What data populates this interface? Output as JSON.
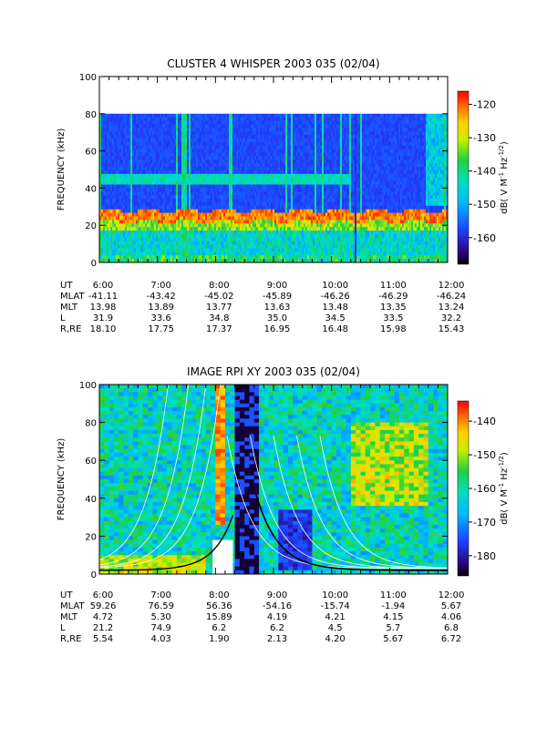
{
  "chart_data": [
    {
      "type": "heatmap",
      "title": "CLUSTER 4 WHISPER 2003 035 (02/04)",
      "ylabel": "FREQUENCY (kHz)",
      "ylim": [
        0,
        100
      ],
      "yticks": [
        0,
        20,
        40,
        60,
        80,
        100
      ],
      "xlim": [
        "6:00",
        "12:00"
      ],
      "xticks": [
        "6:00",
        "7:00",
        "8:00",
        "9:00",
        "10:00",
        "11:00",
        "12:00"
      ],
      "data_max_frequency_khz": 80,
      "colorbar": {
        "label": "dB( V M⁻¹ Hz⁻¹ᐟ²)",
        "label_text": "dB( V M",
        "range": [
          -168,
          -116
        ],
        "ticks": [
          -120,
          -130,
          -140,
          -150,
          -160
        ]
      },
      "features": {
        "intense_band_khz": [
          22,
          28
        ],
        "upper_band_khz": [
          44,
          48
        ],
        "data_gap": [
          "10:22",
          "10:25"
        ]
      },
      "table": {
        "rows": [
          {
            "label": "UT",
            "values": [
              "6:00",
              "7:00",
              "8:00",
              "9:00",
              "10:00",
              "11:00",
              "12:00"
            ]
          },
          {
            "label": "MLAT",
            "values": [
              "-41.11",
              "-43.42",
              "-45.02",
              "-45.89",
              "-46.26",
              "-46.29",
              "-46.24"
            ]
          },
          {
            "label": "MLT",
            "values": [
              "13.98",
              "13.89",
              "13.77",
              "13.63",
              "13.48",
              "13.35",
              "13.24"
            ]
          },
          {
            "label": "L",
            "values": [
              "31.9",
              "33.6",
              "34.8",
              "35.0",
              "34.5",
              "33.5",
              "32.2"
            ]
          },
          {
            "label": "R,RE",
            "values": [
              "18.10",
              "17.75",
              "17.37",
              "16.95",
              "16.48",
              "15.98",
              "15.43"
            ]
          }
        ]
      }
    },
    {
      "type": "heatmap",
      "title": "IMAGE RPI XY 2003 035 (02/04)",
      "ylabel": "FREQUENCY (kHz)",
      "ylim": [
        0,
        100
      ],
      "yticks": [
        0,
        20,
        40,
        60,
        80,
        100
      ],
      "xlim": [
        "6:00",
        "12:00"
      ],
      "xticks": [
        "6:00",
        "7:00",
        "8:00",
        "9:00",
        "10:00",
        "11:00",
        "12:00"
      ],
      "colorbar": {
        "label_text": "dB( V M",
        "range": [
          -186,
          -134
        ],
        "ticks": [
          -140,
          -150,
          -160,
          -170,
          -180
        ]
      },
      "table": {
        "rows": [
          {
            "label": "UT",
            "values": [
              "6:00",
              "7:00",
              "8:00",
              "9:00",
              "10:00",
              "11:00",
              "12:00"
            ]
          },
          {
            "label": "MLAT",
            "values": [
              "59.26",
              "76.59",
              "56.36",
              "-54.16",
              "-15.74",
              "-1.94",
              "5.67"
            ]
          },
          {
            "label": "MLT",
            "values": [
              "4.72",
              "5.30",
              "15.89",
              "4.19",
              "4.21",
              "4.15",
              "4.06"
            ]
          },
          {
            "label": "L",
            "values": [
              "21.2",
              "74.9",
              "6.2",
              "6.2",
              "4.5",
              "5.7",
              "6.8"
            ]
          },
          {
            "label": "R,RE",
            "values": [
              "5.54",
              "4.03",
              "1.90",
              "2.13",
              "4.20",
              "5.67",
              "6.72"
            ]
          }
        ]
      }
    }
  ]
}
